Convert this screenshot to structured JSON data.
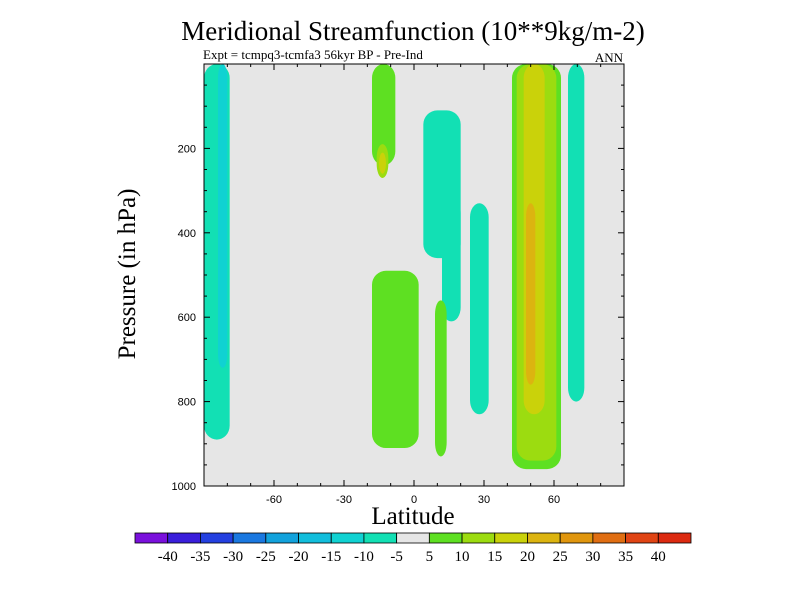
{
  "chart_data": {
    "type": "heatmap",
    "title": "Meridional Streamfunction (10**9kg/m-2)",
    "subtitle_left": "Expt = tcmpq3-tcmfa3    56kyr BP - Pre-Ind",
    "subtitle_right": "ANN",
    "xlabel": "Latitude",
    "ylabel": "Pressure (in hPa)",
    "xlim": [
      -90,
      90
    ],
    "ylim": [
      0,
      1000
    ],
    "y_reversed": true,
    "xticks": [
      -60,
      -30,
      0,
      30,
      60
    ],
    "yticks": [
      200,
      400,
      600,
      800,
      1000
    ],
    "background_color": "#e6e6e6",
    "contour_levels": [
      -40,
      -35,
      -30,
      -25,
      -20,
      -15,
      -10,
      -5,
      5,
      10,
      15,
      20,
      25,
      30,
      35,
      40
    ],
    "colorbar_colors": [
      "#7a10dc",
      "#3a1edb",
      "#2440e0",
      "#1a78e0",
      "#12a2dc",
      "#12bedc",
      "#10d2d2",
      "#12e0b4",
      "#e6e6e6",
      "#5ee022",
      "#9cdc10",
      "#cad20a",
      "#dcb410",
      "#e0960e",
      "#e06e12",
      "#e04414",
      "#dc2a10"
    ],
    "regions": [
      {
        "value_class": "-10 to -5",
        "color": "#12e0b4",
        "lat": [
          -90,
          -79
        ],
        "pressure": [
          0,
          890
        ]
      },
      {
        "value_class": "-15 to -10",
        "color": "#10d2d2",
        "lat": [
          -84,
          -80
        ],
        "pressure": [
          0,
          720
        ]
      },
      {
        "value_class": "5 to 10",
        "color": "#5ee022",
        "lat": [
          -18,
          -8
        ],
        "pressure": [
          0,
          240
        ]
      },
      {
        "value_class": "10 to 15",
        "color": "#9cdc10",
        "lat": [
          -16,
          -11
        ],
        "pressure": [
          190,
          270
        ]
      },
      {
        "value_class": "15 to 20",
        "color": "#cad20a",
        "lat": [
          -15,
          -12
        ],
        "pressure": [
          210,
          260
        ]
      },
      {
        "value_class": "-10 to -5",
        "color": "#12e0b4",
        "lat": [
          4,
          20
        ],
        "pressure": [
          110,
          460
        ]
      },
      {
        "value_class": "-10 to -5",
        "color": "#12e0b4",
        "lat": [
          12,
          20
        ],
        "pressure": [
          320,
          610
        ]
      },
      {
        "value_class": "-10 to -5",
        "color": "#12e0b4",
        "lat": [
          24,
          32
        ],
        "pressure": [
          330,
          830
        ]
      },
      {
        "value_class": "5 to 10",
        "color": "#5ee022",
        "lat": [
          -18,
          2
        ],
        "pressure": [
          490,
          910
        ]
      },
      {
        "value_class": "5 to 10",
        "color": "#5ee022",
        "lat": [
          9,
          14
        ],
        "pressure": [
          560,
          930
        ]
      },
      {
        "value_class": "5 to 10",
        "color": "#5ee022",
        "lat": [
          42,
          63
        ],
        "pressure": [
          0,
          960
        ]
      },
      {
        "value_class": "10 to 15",
        "color": "#9cdc10",
        "lat": [
          44,
          61
        ],
        "pressure": [
          0,
          940
        ]
      },
      {
        "value_class": "15 to 20",
        "color": "#cad20a",
        "lat": [
          47,
          56
        ],
        "pressure": [
          0,
          830
        ]
      },
      {
        "value_class": "20 to 25",
        "color": "#dcb410",
        "lat": [
          48,
          52
        ],
        "pressure": [
          330,
          760
        ]
      },
      {
        "value_class": "-10 to -5",
        "color": "#12e0b4",
        "lat": [
          66,
          73
        ],
        "pressure": [
          0,
          800
        ]
      }
    ]
  }
}
